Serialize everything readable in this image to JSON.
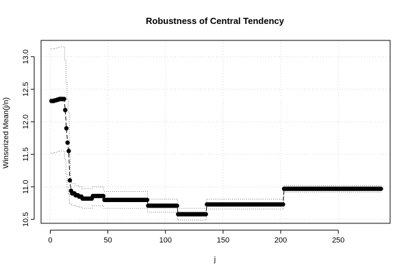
{
  "chart_data": {
    "type": "scatter",
    "title": "Robustness of Central Tendency",
    "xlabel": "j",
    "ylabel": "Winsorized Mean(j/n)",
    "xlim": [
      -8,
      295
    ],
    "ylim": [
      10.44,
      13.25
    ],
    "xticks": [
      0,
      50,
      100,
      150,
      200,
      250
    ],
    "yticks": [
      10.5,
      11.0,
      11.5,
      12.0,
      12.5,
      13.0
    ],
    "ytick_labels": [
      "10.5",
      "11.0",
      "11.5",
      "12.0",
      "12.5",
      "13.0"
    ],
    "grid": true,
    "segments": [
      {
        "from": 1,
        "to": 1,
        "mean": 12.32,
        "lower": 11.52,
        "upper": 13.12
      },
      {
        "from": 2,
        "to": 3,
        "mean": 12.32,
        "lower": 11.52,
        "upper": 13.12
      },
      {
        "from": 4,
        "to": 5,
        "mean": 12.33,
        "lower": 11.53,
        "upper": 13.13
      },
      {
        "from": 6,
        "to": 7,
        "mean": 12.34,
        "lower": 11.54,
        "upper": 13.14
      },
      {
        "from": 8,
        "to": 12,
        "mean": 12.35,
        "lower": 11.55,
        "upper": 13.15
      },
      {
        "from": 13,
        "to": 13,
        "mean": 12.18,
        "lower": 11.42,
        "upper": 12.95
      },
      {
        "from": 14,
        "to": 14,
        "mean": 11.9,
        "lower": 11.2,
        "upper": 12.6
      },
      {
        "from": 15,
        "to": 15,
        "mean": 11.68,
        "lower": 11.0,
        "upper": 12.35
      },
      {
        "from": 16,
        "to": 16,
        "mean": 11.55,
        "lower": 10.9,
        "upper": 12.15
      },
      {
        "from": 17,
        "to": 17,
        "mean": 11.1,
        "lower": 10.75,
        "upper": 11.5
      },
      {
        "from": 18,
        "to": 18,
        "mean": 10.94,
        "lower": 10.74,
        "upper": 11.12
      },
      {
        "from": 19,
        "to": 21,
        "mean": 10.9,
        "lower": 10.72,
        "upper": 11.05
      },
      {
        "from": 22,
        "to": 24,
        "mean": 10.87,
        "lower": 10.7,
        "upper": 11.02
      },
      {
        "from": 25,
        "to": 27,
        "mean": 10.85,
        "lower": 10.69,
        "upper": 11.0
      },
      {
        "from": 28,
        "to": 36,
        "mean": 10.82,
        "lower": 10.67,
        "upper": 10.97
      },
      {
        "from": 37,
        "to": 46,
        "mean": 10.86,
        "lower": 10.71,
        "upper": 11.0
      },
      {
        "from": 47,
        "to": 84,
        "mean": 10.8,
        "lower": 10.67,
        "upper": 10.93
      },
      {
        "from": 85,
        "to": 110,
        "mean": 10.71,
        "lower": 10.61,
        "upper": 10.81
      },
      {
        "from": 111,
        "to": 135,
        "mean": 10.58,
        "lower": 10.49,
        "upper": 10.67
      },
      {
        "from": 136,
        "to": 202,
        "mean": 10.73,
        "lower": 10.66,
        "upper": 10.81
      },
      {
        "from": 203,
        "to": 287,
        "mean": 10.97,
        "lower": 10.92,
        "upper": 11.02
      }
    ]
  }
}
